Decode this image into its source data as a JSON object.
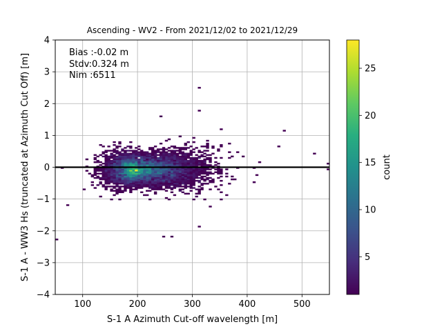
{
  "chart_data": {
    "type": "heatmap",
    "title": "Ascending - WV2 - From 2021/12/02 to 2021/12/29",
    "xlabel": "S-1 A Azimuth Cut-off wavelength [m]",
    "ylabel": "S-1 A - WW3 Hs (truncated at Azimuth Cut Off) [m]",
    "xlim": [
      50,
      550
    ],
    "ylim": [
      -4,
      4
    ],
    "xticks": [
      "100",
      "200",
      "300",
      "400",
      "500"
    ],
    "yticks": [
      "−4",
      "−3",
      "−2",
      "−1",
      "0",
      "1",
      "2",
      "3",
      "4"
    ],
    "grid": true,
    "reference_line_y": 0,
    "annotation": [
      "Bias :-0.02 m",
      "Stdv:0.324 m",
      "Nim :6511"
    ],
    "colorbar": {
      "label": "count",
      "range": [
        1,
        28
      ],
      "ticks": [
        "5",
        "10",
        "15",
        "20",
        "25"
      ],
      "colormap": "viridis"
    },
    "density": {
      "center_x": 200,
      "center_y": -0.08,
      "peak_count": 28,
      "total_count": 6511,
      "bin_width_x": 5,
      "bin_height_y": 0.045
    },
    "outliers": [
      {
        "x": 52,
        "y": -2.25
      },
      {
        "x": 314,
        "y": 2.5
      },
      {
        "x": 310,
        "y": 1.8
      },
      {
        "x": 240,
        "y": 1.62
      },
      {
        "x": 245,
        "y": -2.2
      },
      {
        "x": 262,
        "y": -2.2
      },
      {
        "x": 313,
        "y": -1.88
      },
      {
        "x": 548,
        "y": 0.12
      },
      {
        "x": 548,
        "y": -0.05
      },
      {
        "x": 520,
        "y": 0.45
      },
      {
        "x": 465,
        "y": 1.15
      },
      {
        "x": 455,
        "y": 0.67
      },
      {
        "x": 350,
        "y": 1.2
      },
      {
        "x": 72,
        "y": -1.2
      },
      {
        "x": 60,
        "y": -0.04
      }
    ]
  }
}
